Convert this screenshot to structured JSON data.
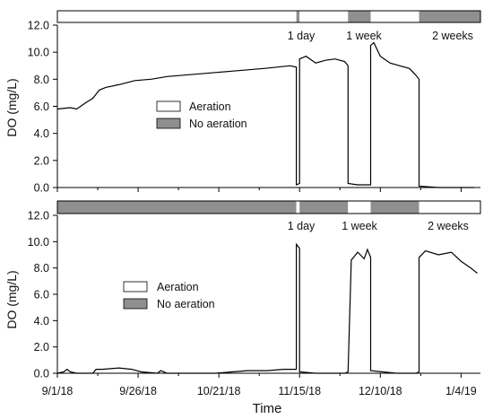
{
  "chart_data": [
    {
      "type": "line",
      "title": "",
      "xlabel": "",
      "ylabel": "DO (mg/L)",
      "xlim": [
        "2018-09-01",
        "2019-01-10"
      ],
      "ylim": [
        0,
        12
      ],
      "yticks": [
        "0.0",
        "2.0",
        "4.0",
        "6.0",
        "8.0",
        "10.0",
        "12.0"
      ],
      "annotations": [
        "1 day",
        "1 week",
        "2 weeks"
      ],
      "legend": {
        "placement": "center-left",
        "aeration_label": "Aeration",
        "no_aeration_label": "No aeration"
      },
      "colors": {
        "aeration": "#ffffff",
        "no_aeration": "#8f8f8f",
        "line": "#000000"
      },
      "treatment_bar": [
        {
          "state": "aeration",
          "start": "2018-09-01",
          "end": "2018-11-14"
        },
        {
          "state": "no_aeration",
          "start": "2018-11-14",
          "end": "2018-11-15"
        },
        {
          "state": "aeration",
          "start": "2018-11-15",
          "end": "2018-11-30"
        },
        {
          "state": "no_aeration",
          "start": "2018-11-30",
          "end": "2018-12-07"
        },
        {
          "state": "aeration",
          "start": "2018-12-07",
          "end": "2018-12-22"
        },
        {
          "state": "no_aeration",
          "start": "2018-12-22",
          "end": "2019-01-10"
        }
      ],
      "series": [
        {
          "x": [
            "2018-09-01",
            "2018-09-05",
            "2018-09-07",
            "2018-09-10",
            "2018-09-12",
            "2018-09-14",
            "2018-09-16",
            "2018-09-20",
            "2018-09-25",
            "2018-09-30",
            "2018-10-05",
            "2018-10-10",
            "2018-10-15",
            "2018-10-20",
            "2018-10-25",
            "2018-10-30",
            "2018-11-04",
            "2018-11-08",
            "2018-11-12",
            "2018-11-14",
            "2018-11-14",
            "2018-11-15",
            "2018-11-15",
            "2018-11-17",
            "2018-11-20",
            "2018-11-23",
            "2018-11-26",
            "2018-11-29",
            "2018-11-30",
            "2018-11-30",
            "2018-12-03",
            "2018-12-06",
            "2018-12-07",
            "2018-12-07",
            "2018-12-08",
            "2018-12-10",
            "2018-12-13",
            "2018-12-16",
            "2018-12-19",
            "2018-12-21",
            "2018-12-22",
            "2018-12-22",
            "2018-12-28",
            "2019-01-04",
            "2019-01-08"
          ],
          "y": [
            5.8,
            5.9,
            5.8,
            6.3,
            6.6,
            7.2,
            7.4,
            7.6,
            7.9,
            8.0,
            8.2,
            8.3,
            8.4,
            8.5,
            8.6,
            8.7,
            8.8,
            8.9,
            9.0,
            8.9,
            0.2,
            0.3,
            9.5,
            9.7,
            9.2,
            9.4,
            9.5,
            9.3,
            9.0,
            0.3,
            0.2,
            0.2,
            0.2,
            10.5,
            10.7,
            9.7,
            9.2,
            9.0,
            8.8,
            8.3,
            8.0,
            0.1,
            0.0,
            0.0,
            0.0
          ]
        }
      ]
    },
    {
      "type": "line",
      "title": "",
      "xlabel": "Time",
      "ylabel": "DO (mg/L)",
      "xlim": [
        "2018-09-01",
        "2019-01-10"
      ],
      "ylim": [
        0,
        12
      ],
      "yticks": [
        "0.0",
        "2.0",
        "4.0",
        "6.0",
        "8.0",
        "10.0",
        "12.0"
      ],
      "xticks": [
        "9/1/18",
        "9/26/18",
        "10/21/18",
        "11/15/18",
        "12/10/18",
        "1/4/19"
      ],
      "annotations": [
        "1 day",
        "1 week",
        "2 weeks"
      ],
      "legend": {
        "placement": "center-left",
        "aeration_label": "Aeration",
        "no_aeration_label": "No aeration"
      },
      "colors": {
        "aeration": "#ffffff",
        "no_aeration": "#8f8f8f",
        "line": "#000000"
      },
      "treatment_bar": [
        {
          "state": "no_aeration",
          "start": "2018-09-01",
          "end": "2018-11-14"
        },
        {
          "state": "aeration",
          "start": "2018-11-14",
          "end": "2018-11-15"
        },
        {
          "state": "no_aeration",
          "start": "2018-11-15",
          "end": "2018-11-30"
        },
        {
          "state": "aeration",
          "start": "2018-11-30",
          "end": "2018-12-07"
        },
        {
          "state": "no_aeration",
          "start": "2018-12-07",
          "end": "2018-12-22"
        },
        {
          "state": "aeration",
          "start": "2018-12-22",
          "end": "2019-01-10"
        }
      ],
      "series": [
        {
          "x": [
            "2018-09-01",
            "2018-09-03",
            "2018-09-04",
            "2018-09-05",
            "2018-09-07",
            "2018-09-12",
            "2018-09-13",
            "2018-09-15",
            "2018-09-20",
            "2018-09-24",
            "2018-09-27",
            "2018-10-02",
            "2018-10-03",
            "2018-10-05",
            "2018-10-20",
            "2018-10-25",
            "2018-10-30",
            "2018-11-05",
            "2018-11-10",
            "2018-11-13",
            "2018-11-14",
            "2018-11-14",
            "2018-11-15",
            "2018-11-15",
            "2018-11-20",
            "2018-11-25",
            "2018-11-29",
            "2018-11-30",
            "2018-12-01",
            "2018-12-03",
            "2018-12-05",
            "2018-12-06",
            "2018-12-07",
            "2018-12-07",
            "2018-12-15",
            "2018-12-21",
            "2018-12-22",
            "2018-12-22",
            "2018-12-24",
            "2018-12-28",
            "2019-01-01",
            "2019-01-04",
            "2019-01-07",
            "2019-01-09"
          ],
          "y": [
            0.0,
            0.1,
            0.3,
            0.1,
            0.0,
            0.0,
            0.3,
            0.3,
            0.4,
            0.3,
            0.1,
            0.0,
            0.2,
            0.0,
            0.0,
            0.1,
            0.2,
            0.2,
            0.3,
            0.3,
            0.3,
            9.8,
            9.5,
            0.1,
            0.0,
            0.0,
            0.0,
            0.1,
            8.6,
            9.2,
            8.7,
            9.4,
            8.8,
            0.2,
            0.0,
            0.0,
            0.1,
            8.8,
            9.3,
            9.0,
            9.2,
            8.5,
            8.0,
            7.6
          ]
        }
      ]
    }
  ]
}
